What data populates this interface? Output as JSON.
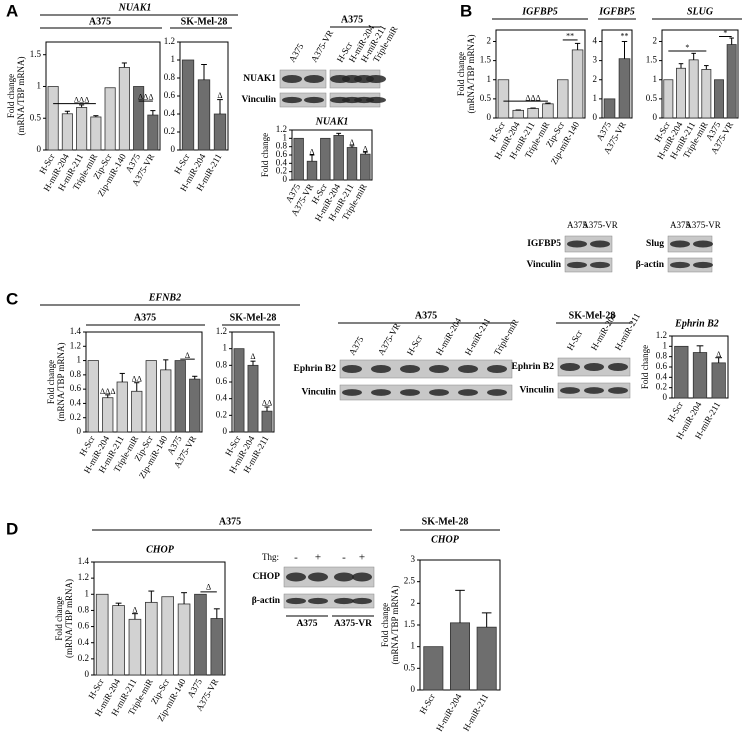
{
  "figure": {
    "panel_labels": [
      "A",
      "B",
      "C",
      "D"
    ],
    "blots": [
      {
        "header": "A375",
        "lanes": [
          "A375",
          "A375-VR",
          "H-Scr",
          "H-miR-204",
          "H-miR-211",
          "Triple-miR"
        ],
        "rows": [
          "NUAK1",
          "Vinculin"
        ]
      },
      {
        "lanes": [
          "A375",
          "A375-VR"
        ],
        "rows": [
          "IGFBP5",
          "Vinculin"
        ]
      },
      {
        "lanes": [
          "A375",
          "A375-VR"
        ],
        "rows": [
          "Slug",
          "β-actin"
        ]
      },
      {
        "header": "A375",
        "lanes": [
          "A375",
          "A375-VR",
          "H-Scr",
          "H-miR-204",
          "H-miR-211",
          "Triple-miR"
        ],
        "rows": [
          "Ephrin B2",
          "Vinculin"
        ]
      },
      {
        "header": "SK-Mel-28",
        "lanes": [
          "H-Scr",
          "H-miR-204",
          "H-miR-211"
        ],
        "rows": [
          "Ephrin B2",
          "Vinculin"
        ]
      },
      {
        "treatment_label": "Thg:",
        "treatments": [
          "-",
          "+",
          "-",
          "+"
        ],
        "rows": [
          "CHOP",
          "β-actin"
        ],
        "groups": [
          "A375",
          "A375-VR"
        ]
      }
    ]
  },
  "chart_data": [
    {
      "type": "bar",
      "title": "NUAK1",
      "subtitle": "A375",
      "ylabel": [
        "Fold change",
        "(mRNA/TBP mRNA)"
      ],
      "categories": [
        "H-Scr",
        "H-miR-204",
        "H-miR-211",
        "Triple-miR",
        "Zip-Scr",
        "Zip-miR-140",
        "A375",
        "A375-VR"
      ],
      "values": [
        1,
        0.57,
        0.67,
        0.52,
        0.98,
        1.3,
        1.0,
        0.55
      ],
      "errors": [
        0,
        0.04,
        0.04,
        0.02,
        0,
        0.07,
        0,
        0.07
      ],
      "colors": [
        "#d2d2d2",
        "#d2d2d2",
        "#d2d2d2",
        "#d2d2d2",
        "#d2d2d2",
        "#d2d2d2",
        "#6e6e6e",
        "#6e6e6e"
      ],
      "ylim": [
        0,
        1.7
      ],
      "yticks": [
        0,
        0.5,
        1,
        1.5
      ],
      "annotations": [
        "ΔΔΔ",
        "ΔΔΔ"
      ]
    },
    {
      "type": "bar",
      "subtitle": "SK-Mel-28",
      "categories": [
        "H-Scr",
        "H-miR-204",
        "H-miR-211"
      ],
      "values": [
        1,
        0.78,
        0.4
      ],
      "errors": [
        0,
        0.17,
        0.16
      ],
      "colors": [
        "#6e6e6e",
        "#6e6e6e",
        "#6e6e6e"
      ],
      "ylim": [
        0,
        1.2
      ],
      "yticks": [
        0,
        0.2,
        0.4,
        0.6,
        0.8,
        1,
        1.2
      ],
      "annotations": [
        "Δ"
      ]
    },
    {
      "type": "bar",
      "title": "NUAK1",
      "ylabel": "Fold change",
      "categories": [
        "A375",
        "A375-VR",
        "H-Scr",
        "H-miR-204",
        "H-miR-211",
        "Triple-miR"
      ],
      "values": [
        1,
        0.45,
        1.0,
        1.07,
        0.78,
        0.62
      ],
      "errors": [
        0,
        0.15,
        0,
        0.05,
        0.04,
        0.05
      ],
      "colors": [
        "#6e6e6e",
        "#6e6e6e",
        "#6e6e6e",
        "#6e6e6e",
        "#6e6e6e",
        "#6e6e6e"
      ],
      "ylim": [
        0,
        1.2
      ],
      "yticks": [
        0,
        0.2,
        0.4,
        0.6,
        0.8,
        1,
        1.2
      ],
      "annotations": [
        "Δ",
        "Δ",
        "Δ"
      ]
    },
    {
      "type": "bar",
      "title": "IGFBP5",
      "ylabel": [
        "Fold change",
        "(mRNA/TBP mRNA)"
      ],
      "categories": [
        "H-Scr",
        "H-miR-204",
        "H-miR-211",
        "Triple-miR",
        "Zip-Scr",
        "Zip-miR-140"
      ],
      "values": [
        1,
        0.2,
        0.25,
        0.37,
        1.0,
        1.78
      ],
      "errors": [
        0,
        0.01,
        0.01,
        0.02,
        0,
        0.17
      ],
      "colors": [
        "#d2d2d2",
        "#d2d2d2",
        "#d2d2d2",
        "#d2d2d2",
        "#d2d2d2",
        "#d2d2d2"
      ],
      "ylim": [
        0,
        2.3
      ],
      "yticks": [
        0,
        0.5,
        1,
        1.5,
        2
      ],
      "annotations": [
        "ΔΔΔ",
        "**"
      ]
    },
    {
      "type": "bar",
      "title": "IGFBP5",
      "categories": [
        "A375",
        "A375-VR"
      ],
      "values": [
        1,
        3.1
      ],
      "errors": [
        0,
        0.9
      ],
      "colors": [
        "#6e6e6e",
        "#6e6e6e"
      ],
      "ylim": [
        0,
        4.6
      ],
      "yticks": [
        0,
        1,
        2,
        3,
        4
      ],
      "annotations": [
        "**"
      ]
    },
    {
      "type": "bar",
      "title": "SLUG",
      "categories": [
        "H-Scr",
        "H-miR-204",
        "H-miR-211",
        "Triple-miR",
        "A375",
        "A375-VR"
      ],
      "values": [
        1,
        1.3,
        1.52,
        1.27,
        1.0,
        1.92
      ],
      "errors": [
        0,
        0.12,
        0.17,
        0.1,
        0,
        0.17
      ],
      "colors": [
        "#d2d2d2",
        "#d2d2d2",
        "#d2d2d2",
        "#d2d2d2",
        "#6e6e6e",
        "#6e6e6e"
      ],
      "ylim": [
        0,
        2.3
      ],
      "yticks": [
        0,
        0.5,
        1,
        1.5,
        2
      ],
      "annotations": [
        "*",
        "*"
      ]
    },
    {
      "type": "bar",
      "title": "EFNB2",
      "subtitle": "A375",
      "ylabel": [
        "Fold change",
        "(mRNA/TBP mRNA)"
      ],
      "categories": [
        "H-Scr",
        "H-miR-204",
        "H-miR-211",
        "Triple-miR",
        "Zip-Scr",
        "Zip-miR-140",
        "A375",
        "A375-VR"
      ],
      "values": [
        1,
        0.48,
        0.7,
        0.57,
        1.0,
        0.87,
        1.0,
        0.74
      ],
      "errors": [
        0,
        0.04,
        0.12,
        0.12,
        0,
        0.14,
        0,
        0.04
      ],
      "colors": [
        "#d2d2d2",
        "#d2d2d2",
        "#d2d2d2",
        "#d2d2d2",
        "#d2d2d2",
        "#d2d2d2",
        "#6e6e6e",
        "#6e6e6e"
      ],
      "ylim": [
        0,
        1.4
      ],
      "yticks": [
        0,
        0.2,
        0.4,
        0.6,
        0.8,
        1,
        1.2,
        1.4
      ],
      "annotations": [
        "ΔΔΔ",
        "ΔΔ",
        "Δ"
      ]
    },
    {
      "type": "bar",
      "subtitle": "SK-Mel-28",
      "categories": [
        "H-Scr",
        "H-miR-204",
        "H-miR-211"
      ],
      "values": [
        1,
        0.8,
        0.25
      ],
      "errors": [
        0,
        0.05,
        0.05
      ],
      "colors": [
        "#6e6e6e",
        "#6e6e6e",
        "#6e6e6e"
      ],
      "ylim": [
        0,
        1.2
      ],
      "yticks": [
        0,
        0.2,
        0.4,
        0.6,
        0.8,
        1,
        1.2
      ],
      "annotations": [
        "Δ",
        "ΔΔ"
      ]
    },
    {
      "type": "bar",
      "title": "Ephrin B2",
      "ylabel": "Fold change",
      "categories": [
        "H-Scr",
        "H-miR-204",
        "H-miR-211"
      ],
      "values": [
        1,
        0.88,
        0.68
      ],
      "errors": [
        0,
        0.13,
        0.1
      ],
      "colors": [
        "#6e6e6e",
        "#6e6e6e",
        "#6e6e6e"
      ],
      "ylim": [
        0,
        1.2
      ],
      "yticks": [
        0,
        0.2,
        0.4,
        0.6,
        0.8,
        1,
        1.2
      ],
      "annotations": [
        "Δ"
      ]
    },
    {
      "type": "bar",
      "title": "CHOP",
      "subtitle": "A375",
      "ylabel": [
        "Fold change",
        "(mRNA/TBP mRNA)"
      ],
      "categories": [
        "H-Scr",
        "H-miR-204",
        "H-miR-211",
        "Triple-miR",
        "Zip-Scr",
        "Zip-miR-140",
        "A375",
        "A375-VR"
      ],
      "values": [
        1,
        0.86,
        0.69,
        0.9,
        0.97,
        0.88,
        1.0,
        0.7
      ],
      "errors": [
        0,
        0.03,
        0.07,
        0.14,
        0,
        0.14,
        0,
        0.12
      ],
      "colors": [
        "#d2d2d2",
        "#d2d2d2",
        "#d2d2d2",
        "#d2d2d2",
        "#d2d2d2",
        "#d2d2d2",
        "#6e6e6e",
        "#6e6e6e"
      ],
      "ylim": [
        0,
        1.4
      ],
      "yticks": [
        0,
        0.2,
        0.4,
        0.6,
        0.8,
        1,
        1.2,
        1.4
      ],
      "annotations": [
        "Δ",
        "Δ"
      ]
    },
    {
      "type": "bar",
      "title": "CHOP",
      "subtitle": "SK-Mel-28",
      "ylabel": [
        "Fold change",
        "(mRNA/TBP mRNA)"
      ],
      "categories": [
        "H-Scr",
        "H-miR-204",
        "H-miR-211"
      ],
      "values": [
        1,
        1.55,
        1.45
      ],
      "errors": [
        0,
        0.75,
        0.33
      ],
      "colors": [
        "#6e6e6e",
        "#6e6e6e",
        "#6e6e6e"
      ],
      "ylim": [
        0,
        3
      ],
      "yticks": [
        0,
        0.5,
        1,
        1.5,
        2,
        2.5,
        3
      ],
      "annotations": []
    }
  ]
}
